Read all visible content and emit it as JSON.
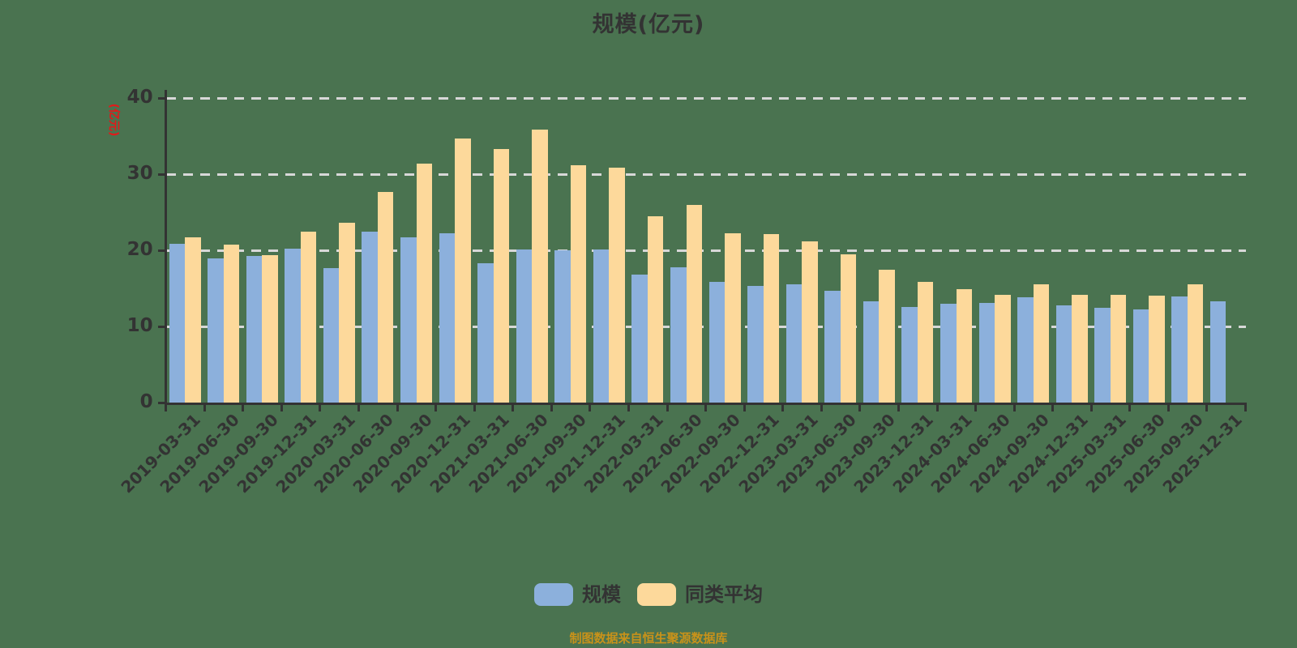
{
  "title": "规模(亿元)",
  "y_axis_name": "(亿元)",
  "footer": "制图数据来自恒生聚源数据库",
  "colors": {
    "background": "#4A7350",
    "bar_scale": "#8CB0DC",
    "bar_average": "#FDD99B",
    "axis": "#333333",
    "gridline": "#D8D8D8",
    "title_text": "#333333",
    "tick_text": "#333333",
    "y_name_text": "#E31919",
    "footer_text": "#C8921A"
  },
  "legend": {
    "items": [
      {
        "label": "规模",
        "color": "#8CB0DC"
      },
      {
        "label": "同类平均",
        "color": "#FDD99B"
      }
    ]
  },
  "chart_data": {
    "type": "bar",
    "title": "规模(亿元)",
    "xlabel": "",
    "ylabel": "(亿元)",
    "ylim": [
      0,
      40
    ],
    "yticks": [
      0,
      10,
      20,
      30,
      40
    ],
    "grid": true,
    "grid_style": "dashed",
    "legend_position": "bottom",
    "categories": [
      "2019-03-31",
      "2019-06-30",
      "2019-09-30",
      "2019-12-31",
      "2020-03-31",
      "2020-06-30",
      "2020-09-30",
      "2020-12-31",
      "2021-03-31",
      "2021-06-30",
      "2021-09-30",
      "2021-12-31",
      "2022-03-31",
      "2022-06-30",
      "2022-09-30",
      "2022-12-31",
      "2023-03-31",
      "2023-06-30",
      "2023-09-30",
      "2023-12-31",
      "2024-03-31",
      "2024-06-30",
      "2024-09-30",
      "2024-12-31",
      "2025-03-31",
      "2025-06-30",
      "2025-09-30",
      "2025-12-31"
    ],
    "series": [
      {
        "name": "规模",
        "color": "#8CB0DC",
        "values": [
          20.9,
          18.9,
          19.3,
          20.2,
          17.7,
          22.4,
          21.7,
          22.2,
          18.3,
          20.1,
          20.0,
          20.1,
          16.8,
          17.8,
          15.8,
          15.3,
          15.5,
          14.7,
          13.3,
          12.6,
          13.0,
          13.1,
          13.8,
          12.8,
          12.4,
          12.2,
          13.9,
          13.3
        ]
      },
      {
        "name": "同类平均",
        "color": "#FDD99B",
        "values": [
          21.7,
          20.7,
          19.4,
          22.4,
          23.6,
          27.7,
          31.4,
          34.7,
          33.3,
          35.9,
          31.2,
          30.8,
          24.5,
          26.0,
          22.2,
          22.1,
          21.2,
          19.5,
          17.5,
          15.9,
          14.9,
          14.2,
          15.5,
          14.2,
          14.1,
          14.0,
          15.5,
          null
        ]
      }
    ]
  }
}
